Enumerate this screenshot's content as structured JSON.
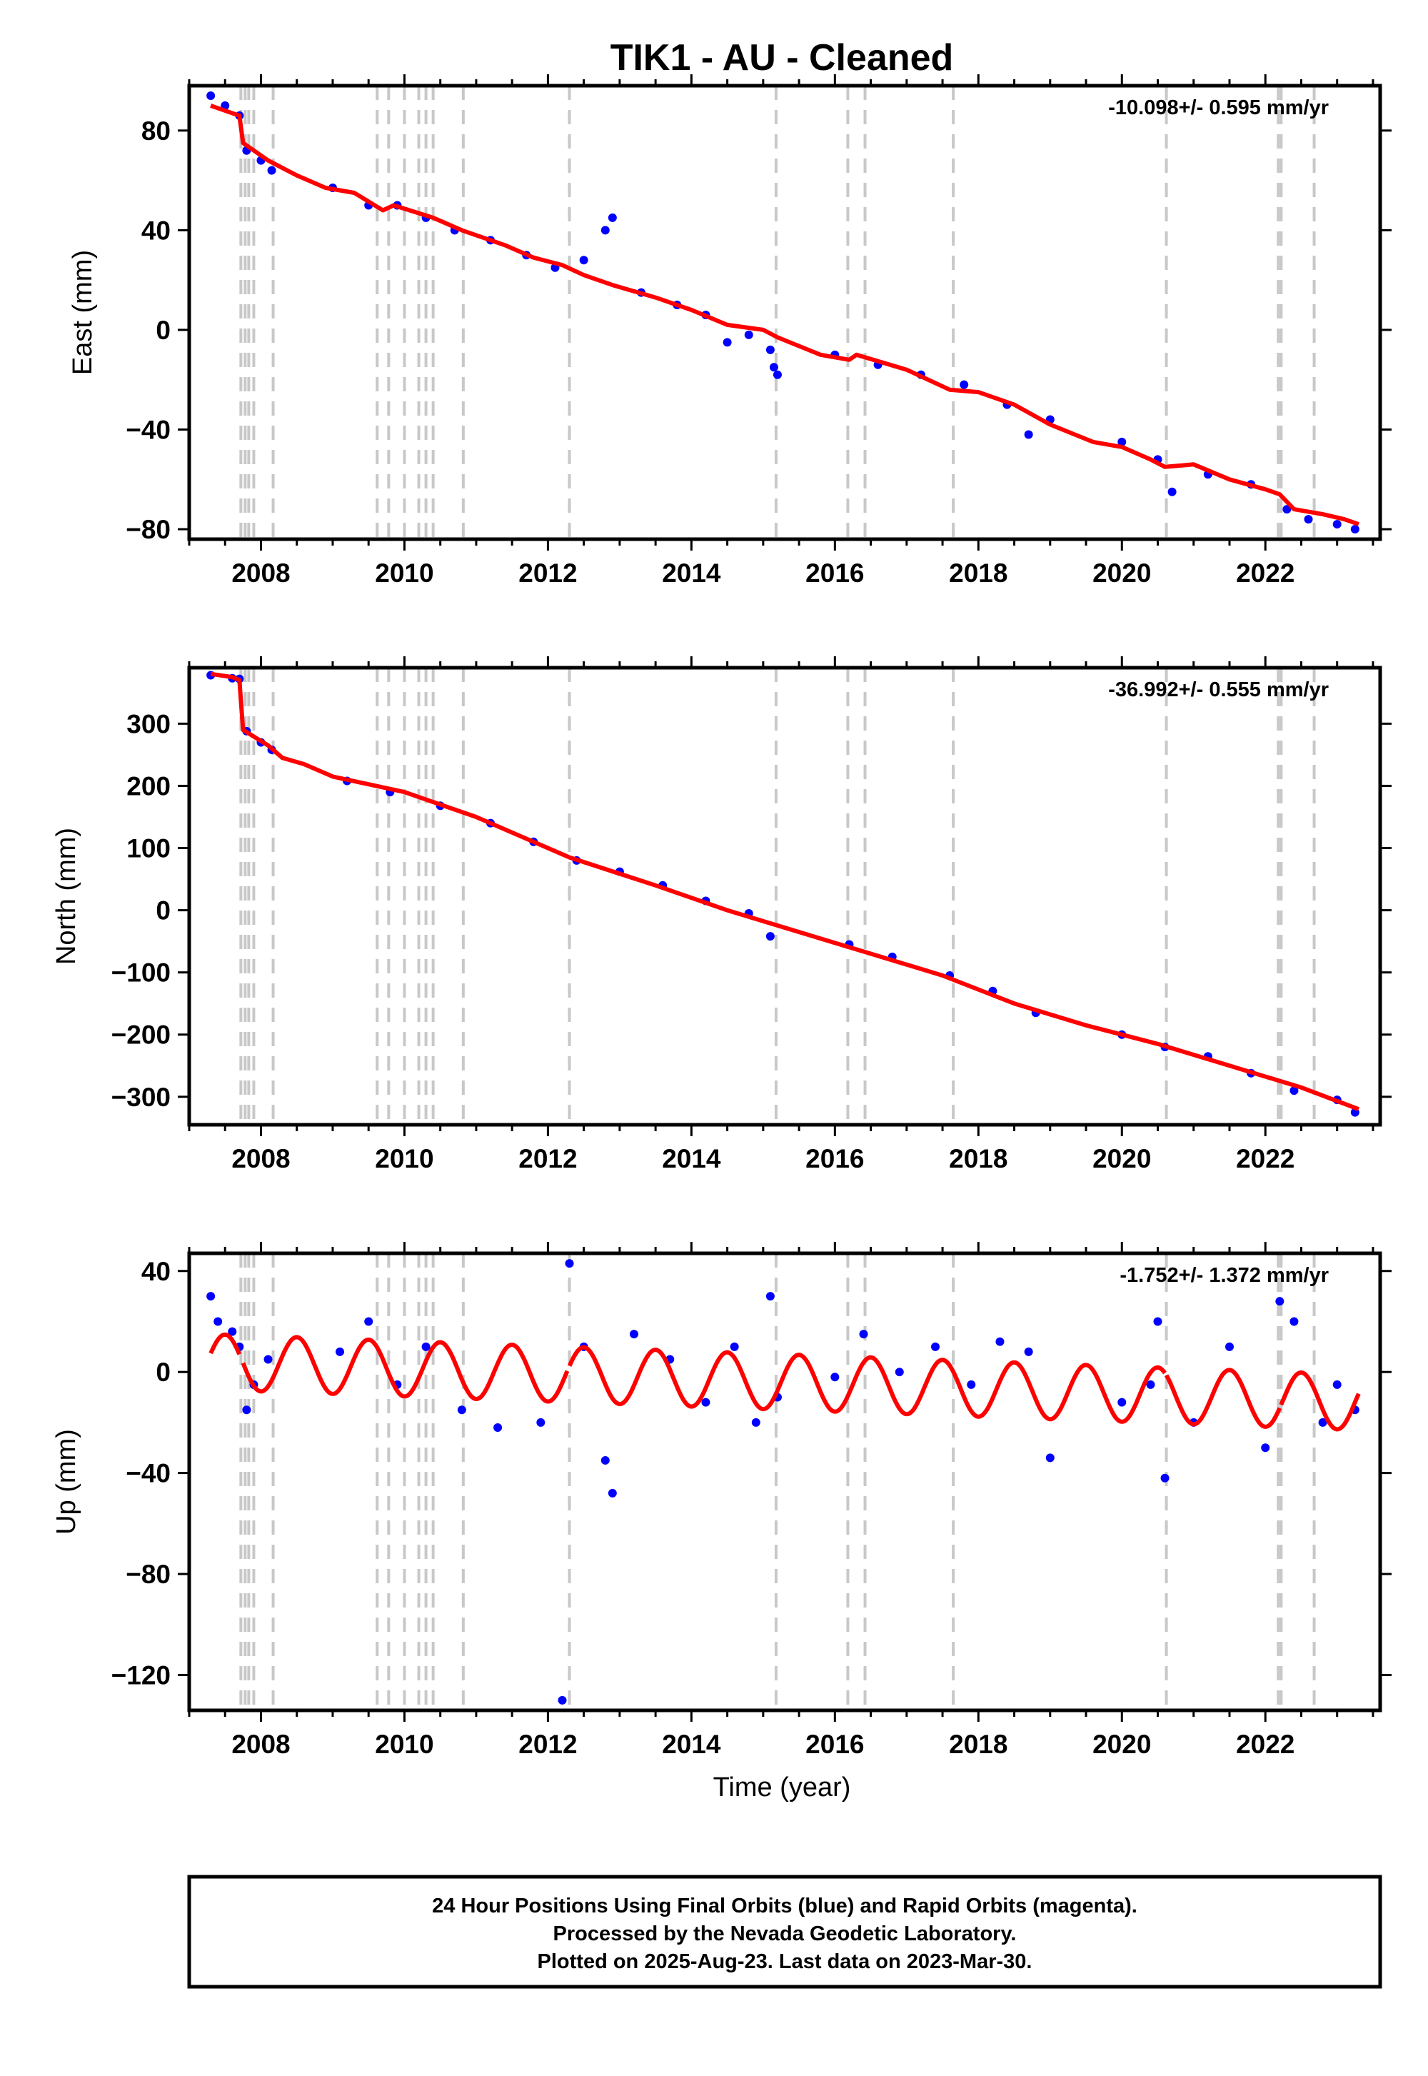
{
  "title": "TIK1  - AU - Cleaned",
  "xlabel": "Time (year)",
  "footer": {
    "line1": "24 Hour Positions Using Final Orbits (blue) and Rapid Orbits (magenta).",
    "line2": "Processed by the Nevada Geodetic Laboratory.",
    "line3": "Plotted on 2025-Aug-23. Last data on 2023-Mar-30."
  },
  "colors": {
    "data": "#0000ff",
    "model": "#ff0000",
    "event": "#c8c8c8",
    "axis": "#000000"
  },
  "chart_data": [
    {
      "type": "scatter",
      "component": "east",
      "ylabel": "East (mm)",
      "rate": "-10.098+/- 0.595 mm/yr",
      "xlim": [
        2007.0,
        2023.6
      ],
      "ylim": [
        -84,
        98
      ],
      "xticks": [
        2008,
        2010,
        2012,
        2014,
        2016,
        2018,
        2020,
        2022
      ],
      "yticks": [
        -80,
        -40,
        0,
        40,
        80
      ],
      "grid": false,
      "model_line": [
        [
          2007.3,
          90
        ],
        [
          2007.7,
          86
        ],
        [
          2007.75,
          75
        ],
        [
          2008.1,
          68
        ],
        [
          2008.5,
          62
        ],
        [
          2008.9,
          57
        ],
        [
          2009.3,
          55
        ],
        [
          2009.7,
          48
        ],
        [
          2009.85,
          50
        ],
        [
          2010.4,
          45
        ],
        [
          2010.8,
          40
        ],
        [
          2011.4,
          34
        ],
        [
          2011.8,
          29
        ],
        [
          2012.2,
          26
        ],
        [
          2012.5,
          22
        ],
        [
          2012.9,
          18
        ],
        [
          2013.5,
          13
        ],
        [
          2014.0,
          8
        ],
        [
          2014.5,
          2
        ],
        [
          2015.0,
          0
        ],
        [
          2015.2,
          -3
        ],
        [
          2015.8,
          -10
        ],
        [
          2016.2,
          -12
        ],
        [
          2016.3,
          -10
        ],
        [
          2017.0,
          -16
        ],
        [
          2017.6,
          -24
        ],
        [
          2018.0,
          -25
        ],
        [
          2018.5,
          -30
        ],
        [
          2019.0,
          -38
        ],
        [
          2019.6,
          -45
        ],
        [
          2020.0,
          -47
        ],
        [
          2020.4,
          -52
        ],
        [
          2020.6,
          -55
        ],
        [
          2021.0,
          -54
        ],
        [
          2021.5,
          -60
        ],
        [
          2022.0,
          -64
        ],
        [
          2022.2,
          -66
        ],
        [
          2022.4,
          -72
        ],
        [
          2022.8,
          -74
        ],
        [
          2023.1,
          -76
        ],
        [
          2023.3,
          -78
        ]
      ],
      "points": [
        [
          2007.3,
          94
        ],
        [
          2007.5,
          90
        ],
        [
          2007.7,
          86
        ],
        [
          2007.8,
          72
        ],
        [
          2008.0,
          68
        ],
        [
          2008.15,
          64
        ],
        [
          2009.0,
          57
        ],
        [
          2009.5,
          50
        ],
        [
          2009.9,
          50
        ],
        [
          2010.3,
          45
        ],
        [
          2010.7,
          40
        ],
        [
          2011.2,
          36
        ],
        [
          2011.7,
          30
        ],
        [
          2012.1,
          25
        ],
        [
          2012.5,
          28
        ],
        [
          2012.8,
          40
        ],
        [
          2012.9,
          45
        ],
        [
          2013.3,
          15
        ],
        [
          2013.8,
          10
        ],
        [
          2014.2,
          6
        ],
        [
          2014.5,
          -5
        ],
        [
          2014.8,
          -2
        ],
        [
          2015.1,
          -8
        ],
        [
          2015.15,
          -15
        ],
        [
          2015.2,
          -18
        ],
        [
          2016.0,
          -10
        ],
        [
          2016.6,
          -14
        ],
        [
          2017.2,
          -18
        ],
        [
          2017.8,
          -22
        ],
        [
          2018.4,
          -30
        ],
        [
          2018.7,
          -42
        ],
        [
          2019.0,
          -36
        ],
        [
          2020.0,
          -45
        ],
        [
          2020.5,
          -52
        ],
        [
          2020.7,
          -65
        ],
        [
          2021.2,
          -58
        ],
        [
          2021.8,
          -62
        ],
        [
          2022.3,
          -72
        ],
        [
          2022.6,
          -76
        ],
        [
          2023.0,
          -78
        ],
        [
          2023.25,
          -80
        ]
      ]
    },
    {
      "type": "scatter",
      "component": "north",
      "ylabel": "North (mm)",
      "rate": "-36.992+/- 0.555 mm/yr",
      "xlim": [
        2007.0,
        2023.6
      ],
      "ylim": [
        -345,
        390
      ],
      "xticks": [
        2008,
        2010,
        2012,
        2014,
        2016,
        2018,
        2020,
        2022
      ],
      "yticks": [
        -300,
        -200,
        -100,
        0,
        100,
        200,
        300
      ],
      "grid": false,
      "model_line": [
        [
          2007.3,
          380
        ],
        [
          2007.6,
          375
        ],
        [
          2007.7,
          370
        ],
        [
          2007.75,
          290
        ],
        [
          2008.1,
          265
        ],
        [
          2008.3,
          245
        ],
        [
          2008.6,
          235
        ],
        [
          2009.0,
          215
        ],
        [
          2010.0,
          190
        ],
        [
          2011.0,
          150
        ],
        [
          2012.3,
          85
        ],
        [
          2013.5,
          40
        ],
        [
          2014.5,
          0
        ],
        [
          2015.5,
          -35
        ],
        [
          2016.5,
          -70
        ],
        [
          2017.5,
          -105
        ],
        [
          2018.5,
          -150
        ],
        [
          2019.5,
          -185
        ],
        [
          2020.5,
          -215
        ],
        [
          2021.5,
          -250
        ],
        [
          2022.5,
          -285
        ],
        [
          2023.3,
          -320
        ]
      ],
      "points": [
        [
          2007.3,
          378
        ],
        [
          2007.6,
          373
        ],
        [
          2007.7,
          372
        ],
        [
          2007.8,
          288
        ],
        [
          2008.0,
          270
        ],
        [
          2008.15,
          258
        ],
        [
          2009.2,
          208
        ],
        [
          2009.8,
          190
        ],
        [
          2010.5,
          168
        ],
        [
          2011.2,
          140
        ],
        [
          2011.8,
          110
        ],
        [
          2012.4,
          80
        ],
        [
          2013.0,
          62
        ],
        [
          2013.6,
          40
        ],
        [
          2014.2,
          15
        ],
        [
          2014.8,
          -5
        ],
        [
          2015.1,
          -42
        ],
        [
          2016.2,
          -55
        ],
        [
          2016.8,
          -75
        ],
        [
          2017.6,
          -105
        ],
        [
          2018.2,
          -130
        ],
        [
          2018.8,
          -165
        ],
        [
          2020.0,
          -200
        ],
        [
          2020.6,
          -220
        ],
        [
          2021.2,
          -235
        ],
        [
          2021.8,
          -262
        ],
        [
          2022.4,
          -290
        ],
        [
          2023.0,
          -305
        ],
        [
          2023.25,
          -325
        ]
      ]
    },
    {
      "type": "scatter",
      "component": "up",
      "ylabel": "Up (mm)",
      "rate": "-1.752+/- 1.372 mm/yr",
      "xlim": [
        2007.0,
        2023.6
      ],
      "ylim": [
        -134,
        47
      ],
      "xticks": [
        2008,
        2010,
        2012,
        2014,
        2016,
        2018,
        2020,
        2022
      ],
      "yticks": [
        -120,
        -80,
        -40,
        0,
        40
      ],
      "grid": false,
      "points": [
        [
          2007.3,
          30
        ],
        [
          2007.4,
          20
        ],
        [
          2007.6,
          16
        ],
        [
          2007.7,
          10
        ],
        [
          2007.8,
          -15
        ],
        [
          2007.9,
          -5
        ],
        [
          2008.1,
          5
        ],
        [
          2009.1,
          8
        ],
        [
          2009.5,
          20
        ],
        [
          2009.9,
          -5
        ],
        [
          2010.3,
          10
        ],
        [
          2010.8,
          -15
        ],
        [
          2011.3,
          -22
        ],
        [
          2011.9,
          -20
        ],
        [
          2012.2,
          -130
        ],
        [
          2012.3,
          43
        ],
        [
          2012.5,
          10
        ],
        [
          2012.8,
          -35
        ],
        [
          2012.9,
          -48
        ],
        [
          2013.2,
          15
        ],
        [
          2013.7,
          5
        ],
        [
          2014.2,
          -12
        ],
        [
          2014.6,
          10
        ],
        [
          2014.9,
          -20
        ],
        [
          2015.1,
          30
        ],
        [
          2015.2,
          -10
        ],
        [
          2016.0,
          -2
        ],
        [
          2016.4,
          15
        ],
        [
          2016.9,
          0
        ],
        [
          2017.4,
          10
        ],
        [
          2017.9,
          -5
        ],
        [
          2018.3,
          12
        ],
        [
          2018.7,
          8
        ],
        [
          2019.0,
          -34
        ],
        [
          2020.0,
          -12
        ],
        [
          2020.4,
          -5
        ],
        [
          2020.5,
          20
        ],
        [
          2020.6,
          -42
        ],
        [
          2021.0,
          -20
        ],
        [
          2021.5,
          10
        ],
        [
          2022.0,
          -30
        ],
        [
          2022.2,
          28
        ],
        [
          2022.4,
          20
        ],
        [
          2022.8,
          -20
        ],
        [
          2023.0,
          -5
        ],
        [
          2023.25,
          -15
        ]
      ]
    }
  ],
  "event_lines": [
    2007.72,
    2007.78,
    2007.83,
    2007.9,
    2008.17,
    2009.62,
    2009.78,
    2010.0,
    2010.2,
    2010.3,
    2010.4,
    2010.82,
    2012.3,
    2015.18,
    2016.18,
    2016.42,
    2017.65,
    2020.62,
    2022.18,
    2022.22,
    2022.68
  ]
}
